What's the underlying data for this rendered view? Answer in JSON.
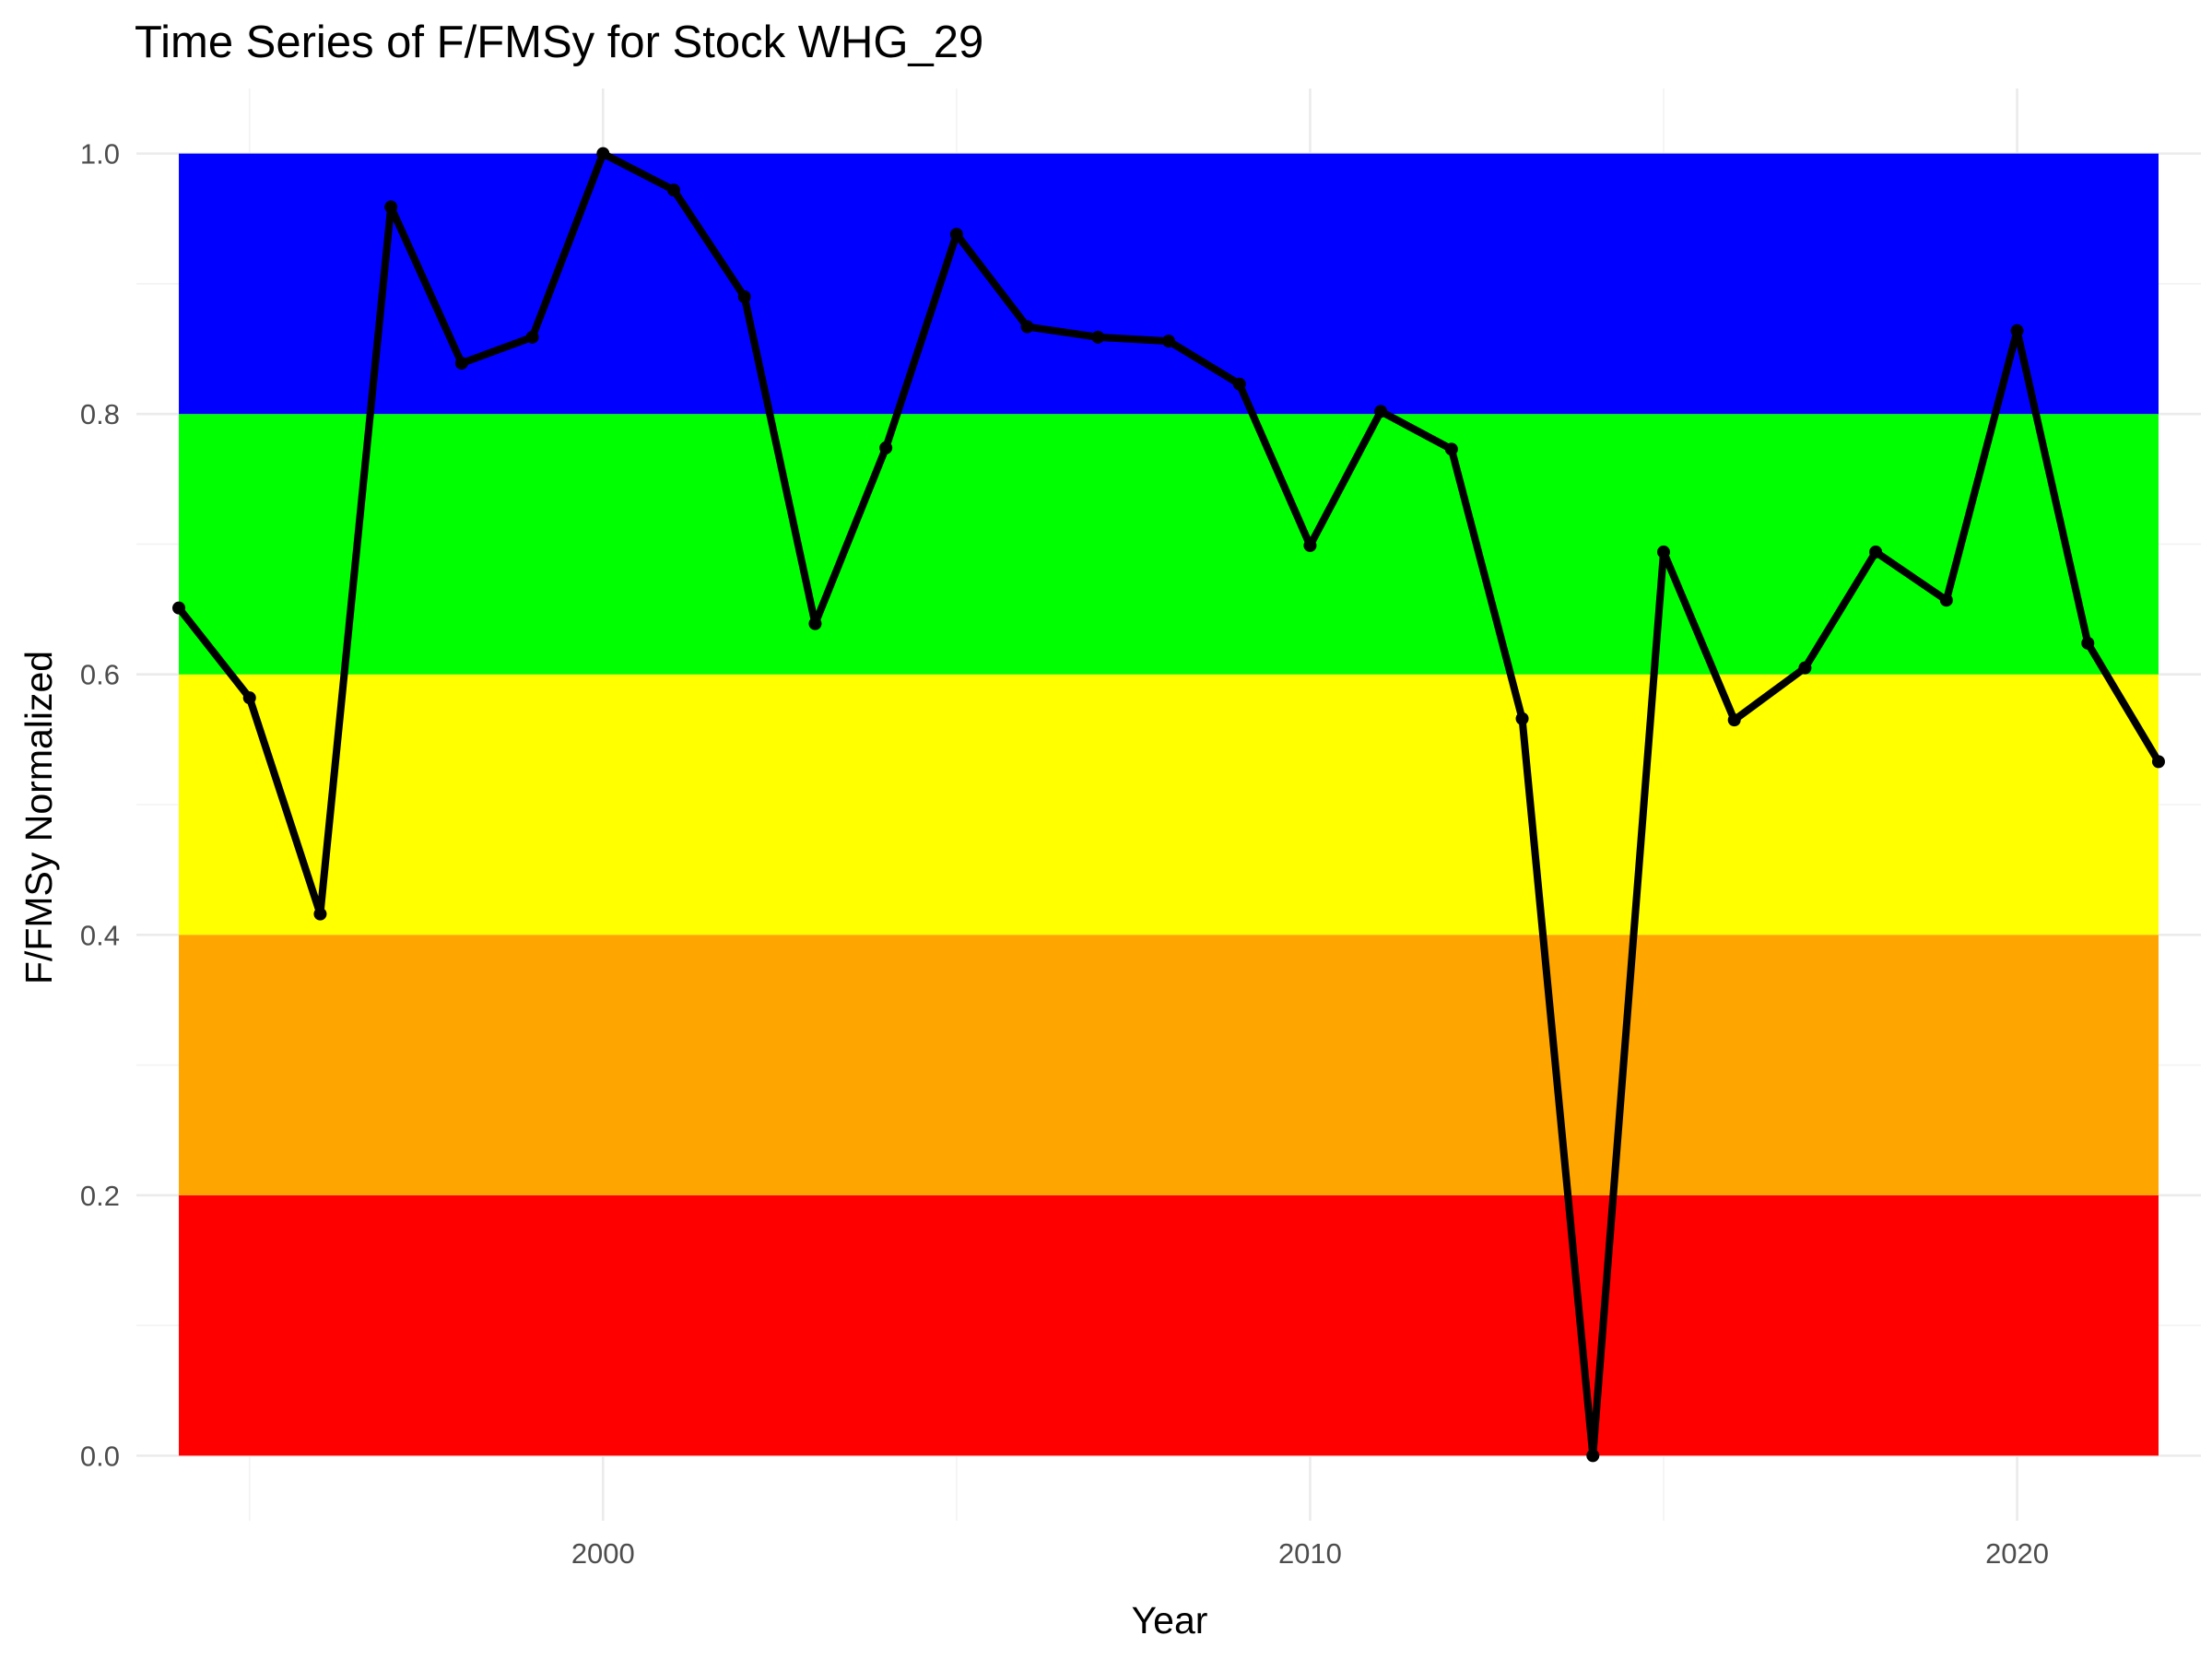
{
  "chart_data": {
    "type": "line",
    "title": "Time Series of F/FMSy for Stock WHG_29",
    "xlabel": "Year",
    "ylabel": "F/FMSy Normalized",
    "xlim": [
      1993.4,
      2022.6
    ],
    "ylim": [
      -0.05,
      1.05
    ],
    "x_ticks": [
      2000,
      2010,
      2020
    ],
    "x_tick_labels": [
      "2000",
      "2010",
      "2020"
    ],
    "x_minor_ticks": [
      1995,
      2005,
      2015
    ],
    "y_ticks": [
      0.0,
      0.2,
      0.4,
      0.6,
      0.8,
      1.0
    ],
    "y_tick_labels": [
      "0.0",
      "0.2",
      "0.4",
      "0.6",
      "0.8",
      "1.0"
    ],
    "y_minor_ticks": [
      0.1,
      0.3,
      0.5,
      0.7,
      0.9
    ],
    "grid": true,
    "legend": "none",
    "bands": [
      {
        "y0": 0.0,
        "y1": 0.2,
        "color": "#ff0000"
      },
      {
        "y0": 0.2,
        "y1": 0.4,
        "color": "#ffa500"
      },
      {
        "y0": 0.4,
        "y1": 0.6,
        "color": "#ffff00"
      },
      {
        "y0": 0.6,
        "y1": 0.8,
        "color": "#00ff00"
      },
      {
        "y0": 0.8,
        "y1": 1.0,
        "color": "#0000ff"
      }
    ],
    "band_x_range": [
      1994,
      2022
    ],
    "series": [
      {
        "color": "#000000",
        "x": [
          1994,
          1995,
          1996,
          1997,
          1998,
          1999,
          2000,
          2001,
          2002,
          2003,
          2004,
          2005,
          2006,
          2007,
          2008,
          2009,
          2010,
          2011,
          2012,
          2013,
          2014,
          2015,
          2016,
          2017,
          2018,
          2019,
          2020,
          2021,
          2022
        ],
        "values": [
          0.651,
          0.582,
          0.416,
          0.959,
          0.839,
          0.859,
          1.0,
          0.972,
          0.89,
          0.639,
          0.774,
          0.938,
          0.867,
          0.859,
          0.856,
          0.823,
          0.699,
          0.802,
          0.773,
          0.566,
          0.0,
          0.694,
          0.565,
          0.605,
          0.694,
          0.657,
          0.864,
          0.624,
          0.533
        ]
      }
    ]
  }
}
